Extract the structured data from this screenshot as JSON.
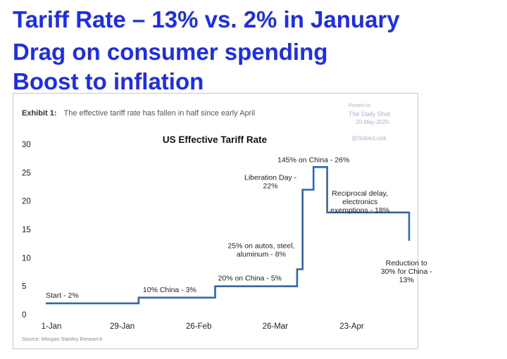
{
  "headline": {
    "line1": "Tariff Rate – 13% vs. 2% in January",
    "line2": "Drag on consumer spending",
    "line3": "Boost to inflation"
  },
  "exhibit": {
    "label": "Exhibit 1:",
    "caption": "The effective tariff rate has fallen in half since early April"
  },
  "watermark": {
    "posted_on": "Posted on",
    "site": "The Daily Shot",
    "date": "20-May-2025",
    "handle": "@SoberLook"
  },
  "source": "Source: Morgan Stanley Research",
  "chart_data": {
    "type": "line",
    "title": "US Effective Tariff Rate",
    "xlabel": "",
    "ylabel": "",
    "ylim": [
      0,
      30
    ],
    "yticks": [
      0,
      5,
      10,
      15,
      20,
      25,
      30
    ],
    "xlim": [
      "2025-01-01",
      "2025-05-14"
    ],
    "xticks": [
      {
        "date": "2025-01-01",
        "label": "1-Jan"
      },
      {
        "date": "2025-01-29",
        "label": "29-Jan"
      },
      {
        "date": "2025-02-26",
        "label": "26-Feb"
      },
      {
        "date": "2025-03-26",
        "label": "26-Mar"
      },
      {
        "date": "2025-04-23",
        "label": "23-Apr"
      }
    ],
    "grid": false,
    "color": "#2f67b2",
    "step_points": [
      {
        "date": "2025-01-01",
        "value": 2
      },
      {
        "date": "2025-02-04",
        "value": 3
      },
      {
        "date": "2025-03-04",
        "value": 5
      },
      {
        "date": "2025-04-03",
        "value": 8
      },
      {
        "date": "2025-04-05",
        "value": 22
      },
      {
        "date": "2025-04-09",
        "value": 26
      },
      {
        "date": "2025-04-14",
        "value": 18
      },
      {
        "date": "2025-05-14",
        "value": 13
      }
    ],
    "annotations": [
      {
        "lines": [
          "Start - 2%"
        ],
        "date": "2025-01-01",
        "value": 2
      },
      {
        "lines": [
          "10% China - 3%"
        ],
        "date": "2025-02-04",
        "value": 3
      },
      {
        "lines": [
          "20% on China - 5%"
        ],
        "date": "2025-03-04",
        "value": 5
      },
      {
        "lines": [
          "25% on autos, steel,",
          "aluminum - 8%"
        ],
        "date": "2025-03-26",
        "value": 8
      },
      {
        "lines": [
          "Liberation Day -",
          "22%"
        ],
        "date": "2025-04-02",
        "value": 22
      },
      {
        "lines": [
          "145% on China - 26%"
        ],
        "date": "2025-04-09",
        "value": 26
      },
      {
        "lines": [
          "Reciprocal delay,",
          "electronics",
          "exemptions - 18%"
        ],
        "date": "2025-04-26",
        "value": 18
      },
      {
        "lines": [
          "Reduction to",
          "30% for China -",
          "13%"
        ],
        "date": "2025-05-12",
        "value": 13
      }
    ]
  }
}
